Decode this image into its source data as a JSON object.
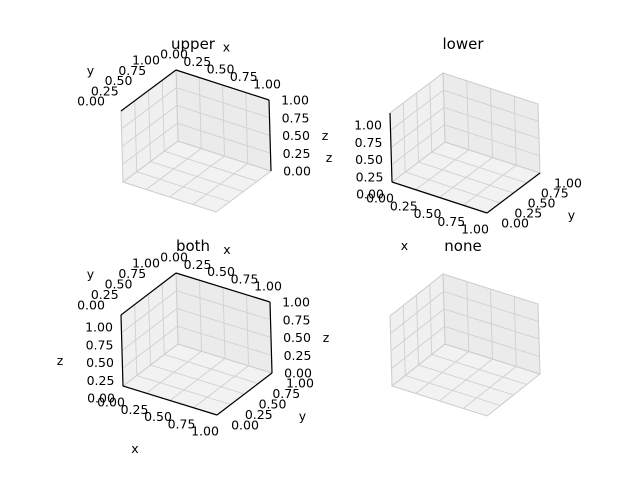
{
  "chart_data": [
    {
      "type": "3d-axes",
      "title": "upper",
      "xlabel": "x",
      "ylabel": "y",
      "zlabel": "z",
      "xlim": [
        0,
        1
      ],
      "ylim": [
        0,
        1
      ],
      "zlim": [
        0,
        1
      ],
      "x_ticks": [
        "0.00",
        "0.25",
        "0.50",
        "0.75",
        "1.00"
      ],
      "y_ticks": [
        "0.00",
        "0.25",
        "0.50",
        "0.75",
        "1.00"
      ],
      "z_ticks": [
        "0.00",
        "0.25",
        "0.50",
        "0.75",
        "1.00"
      ],
      "grid": true,
      "axis_label_position": "upper"
    },
    {
      "type": "3d-axes",
      "title": "lower",
      "xlabel": "x",
      "ylabel": "y",
      "zlabel": "z",
      "xlim": [
        0,
        1
      ],
      "ylim": [
        0,
        1
      ],
      "zlim": [
        0,
        1
      ],
      "x_ticks": [
        "0.00",
        "0.25",
        "0.50",
        "0.75",
        "1.00"
      ],
      "y_ticks": [
        "0.00",
        "0.25",
        "0.50",
        "0.75",
        "1.00"
      ],
      "z_ticks": [
        "0.00",
        "0.25",
        "0.50",
        "0.75",
        "1.00"
      ],
      "grid": true,
      "axis_label_position": "lower"
    },
    {
      "type": "3d-axes",
      "title": "both",
      "xlabel": "x",
      "ylabel": "y",
      "zlabel": "z",
      "xlim": [
        0,
        1
      ],
      "ylim": [
        0,
        1
      ],
      "zlim": [
        0,
        1
      ],
      "x_ticks": [
        "0.00",
        "0.25",
        "0.50",
        "0.75",
        "1.00"
      ],
      "y_ticks": [
        "0.00",
        "0.25",
        "0.50",
        "0.75",
        "1.00"
      ],
      "z_ticks": [
        "0.00",
        "0.25",
        "0.50",
        "0.75",
        "1.00"
      ],
      "grid": true,
      "axis_label_position": "both"
    },
    {
      "type": "3d-axes",
      "title": "none",
      "grid": true,
      "axis_label_position": "none"
    }
  ]
}
